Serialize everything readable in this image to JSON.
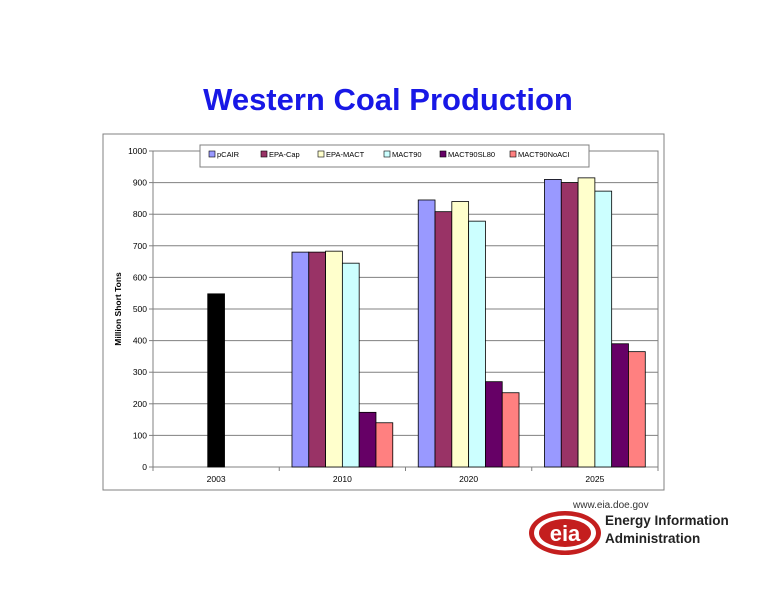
{
  "slide": {
    "title": "Western Coal Production"
  },
  "colors": {
    "title": "#1818e6",
    "brand": "#c41e1e"
  },
  "chart_data": {
    "type": "bar",
    "title": "",
    "xlabel": "",
    "ylabel": "Million Short Tons",
    "ylim": [
      0,
      1000
    ],
    "yticks": [
      "0",
      "100",
      "200",
      "300",
      "400",
      "500",
      "600",
      "700",
      "800",
      "900",
      "1000"
    ],
    "categories": [
      "2003",
      "2010",
      "2020",
      "2025"
    ],
    "grid": "horizontal",
    "legend_position": "top",
    "historical": {
      "category": "2003",
      "value": 548,
      "color": "#000000"
    },
    "series": [
      {
        "name": "pCAIR",
        "color": "#9999ff",
        "values": [
          null,
          680,
          845,
          910
        ]
      },
      {
        "name": "EPA-Cap",
        "color": "#993366",
        "values": [
          null,
          680,
          808,
          900
        ]
      },
      {
        "name": "EPA-MACT",
        "color": "#ffffcc",
        "values": [
          null,
          683,
          840,
          915
        ]
      },
      {
        "name": "MACT90",
        "color": "#ccffff",
        "values": [
          null,
          645,
          778,
          873
        ]
      },
      {
        "name": "MACT90SL80",
        "color": "#660066",
        "values": [
          null,
          173,
          270,
          390
        ]
      },
      {
        "name": "MACT90NoACI",
        "color": "#ff8080",
        "values": [
          null,
          140,
          235,
          365
        ]
      }
    ]
  },
  "logo": {
    "url": "www.eia.doe.gov",
    "line1": "Energy Information",
    "line2": "Administration",
    "mark": "eia"
  }
}
